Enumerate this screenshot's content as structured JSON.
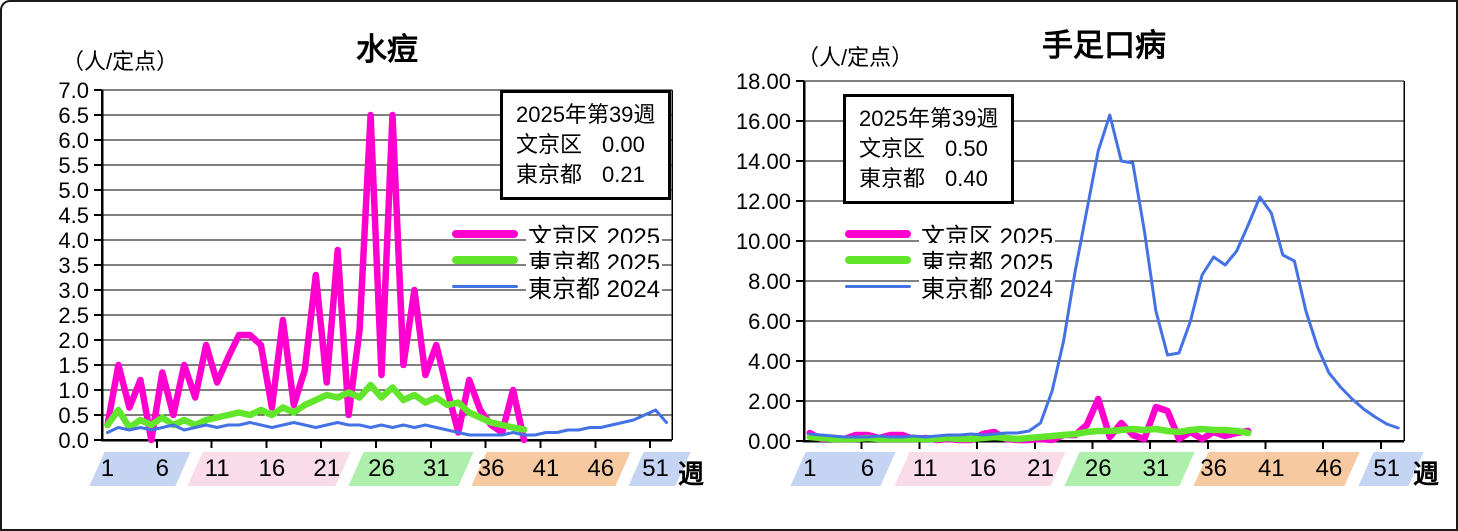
{
  "chart_data": [
    {
      "type": "line",
      "title": "水痘",
      "unit_label": "（人/定点）",
      "xlabel": "週",
      "x_ticks": [
        1,
        6,
        11,
        16,
        21,
        26,
        31,
        36,
        41,
        46,
        51
      ],
      "weeks_total": 52,
      "ylim": [
        0,
        7
      ],
      "y_step": 0.5,
      "y_decimals": 1,
      "grid": true,
      "legend_position": "middle-right",
      "info_box": {
        "period": "2025年第39週",
        "rows": [
          {
            "name": "文京区",
            "value": "0.00"
          },
          {
            "name": "東京都",
            "value": "0.21"
          }
        ]
      },
      "series": [
        {
          "name": "文京区 2025",
          "color": "#FF00CE",
          "width": 6.5,
          "values": [
            0.3,
            1.5,
            0.65,
            1.2,
            0,
            1.35,
            0.5,
            1.5,
            0.85,
            1.9,
            1.15,
            1.65,
            2.1,
            2.1,
            1.9,
            0.65,
            2.4,
            0.7,
            1.4,
            3.3,
            1.15,
            3.8,
            0.5,
            2.2,
            6.5,
            1.3,
            6.5,
            1.5,
            3.0,
            1.3,
            1.9,
            1.0,
            0.15,
            1.2,
            0.6,
            0.3,
            0.15,
            1.0,
            0
          ]
        },
        {
          "name": "東京都 2025",
          "color": "#62E62C",
          "width": 6.5,
          "values": [
            0.3,
            0.6,
            0.25,
            0.4,
            0.3,
            0.45,
            0.3,
            0.4,
            0.3,
            0.4,
            0.45,
            0.5,
            0.55,
            0.5,
            0.6,
            0.5,
            0.65,
            0.55,
            0.7,
            0.8,
            0.9,
            0.85,
            0.95,
            0.85,
            1.1,
            0.85,
            1.05,
            0.8,
            0.9,
            0.75,
            0.85,
            0.7,
            0.75,
            0.55,
            0.45,
            0.35,
            0.3,
            0.25,
            0.21
          ]
        },
        {
          "name": "東京都 2024",
          "color": "#4472E4",
          "width": 3,
          "values": [
            0.15,
            0.25,
            0.2,
            0.25,
            0.2,
            0.25,
            0.3,
            0.2,
            0.25,
            0.3,
            0.25,
            0.3,
            0.3,
            0.35,
            0.3,
            0.25,
            0.3,
            0.35,
            0.3,
            0.25,
            0.3,
            0.35,
            0.3,
            0.3,
            0.25,
            0.3,
            0.25,
            0.3,
            0.25,
            0.3,
            0.25,
            0.2,
            0.15,
            0.1,
            0.1,
            0.1,
            0.1,
            0.15,
            0.1,
            0.1,
            0.15,
            0.15,
            0.2,
            0.2,
            0.25,
            0.25,
            0.3,
            0.35,
            0.4,
            0.5,
            0.6,
            0.35
          ]
        }
      ],
      "season_bands": [
        {
          "from": -0.5,
          "to": 7.3,
          "color": "#C5D4F2"
        },
        {
          "from": 8.5,
          "to": 22.0,
          "color": "#FADCE9"
        },
        {
          "from": 23.2,
          "to": 33.2,
          "color": "#ADEFAB"
        },
        {
          "from": 34.4,
          "to": 47.5,
          "color": "#F6C9A1"
        },
        {
          "from": 48.7,
          "to": 53.0,
          "color": "#C5D4F2"
        }
      ]
    },
    {
      "type": "line",
      "title": "手足口病",
      "unit_label": "（人/定点）",
      "xlabel": "週",
      "x_ticks": [
        1,
        6,
        11,
        16,
        21,
        26,
        31,
        36,
        41,
        46,
        51
      ],
      "weeks_total": 52,
      "ylim": [
        0,
        18
      ],
      "y_step": 2,
      "y_decimals": 2,
      "grid": true,
      "legend_position": "middle-left",
      "info_box": {
        "period": "2025年第39週",
        "rows": [
          {
            "name": "文京区",
            "value": "0.50"
          },
          {
            "name": "東京都",
            "value": "0.40"
          }
        ]
      },
      "series": [
        {
          "name": "文京区 2025",
          "color": "#FF00CE",
          "width": 6.5,
          "values": [
            0.4,
            0.1,
            0.15,
            0.1,
            0.3,
            0.3,
            0.15,
            0.3,
            0.3,
            0.1,
            0.15,
            0.05,
            0.1,
            0.05,
            0.05,
            0.35,
            0.45,
            0.1,
            0.05,
            0.05,
            0.1,
            0.05,
            0.3,
            0.3,
            0.8,
            2.1,
            0.2,
            0.9,
            0.3,
            0.1,
            1.7,
            1.5,
            0.1,
            0.45,
            0.1,
            0.45,
            0.25,
            0.4,
            0.5
          ]
        },
        {
          "name": "東京都 2025",
          "color": "#62E62C",
          "width": 6.5,
          "values": [
            0.2,
            0.15,
            0.1,
            0.1,
            0.1,
            0.15,
            0.1,
            0.1,
            0.1,
            0.1,
            0.1,
            0.1,
            0.15,
            0.1,
            0.1,
            0.15,
            0.2,
            0.15,
            0.1,
            0.15,
            0.2,
            0.25,
            0.3,
            0.35,
            0.45,
            0.5,
            0.5,
            0.55,
            0.6,
            0.55,
            0.6,
            0.5,
            0.45,
            0.55,
            0.6,
            0.55,
            0.55,
            0.5,
            0.4
          ]
        },
        {
          "name": "東京都 2024",
          "color": "#4472E4",
          "width": 3,
          "values": [
            0.35,
            0.3,
            0.25,
            0.2,
            0.2,
            0.2,
            0.25,
            0.2,
            0.2,
            0.25,
            0.2,
            0.25,
            0.3,
            0.3,
            0.35,
            0.3,
            0.35,
            0.4,
            0.4,
            0.5,
            0.9,
            2.5,
            5.0,
            8.5,
            11.5,
            14.5,
            16.3,
            14.0,
            13.9,
            10.5,
            6.5,
            4.3,
            4.4,
            6.0,
            8.3,
            9.2,
            8.8,
            9.5,
            10.8,
            12.2,
            11.4,
            9.3,
            9.0,
            6.5,
            4.7,
            3.4,
            2.7,
            2.1,
            1.6,
            1.2,
            0.85,
            0.65
          ]
        }
      ],
      "season_bands": [
        {
          "from": -0.5,
          "to": 7.3,
          "color": "#C5D4F2"
        },
        {
          "from": 8.5,
          "to": 22.0,
          "color": "#FADCE9"
        },
        {
          "from": 23.2,
          "to": 33.2,
          "color": "#ADEFAB"
        },
        {
          "from": 34.4,
          "to": 47.5,
          "color": "#F6C9A1"
        },
        {
          "from": 48.7,
          "to": 53.0,
          "color": "#C5D4F2"
        }
      ]
    }
  ]
}
